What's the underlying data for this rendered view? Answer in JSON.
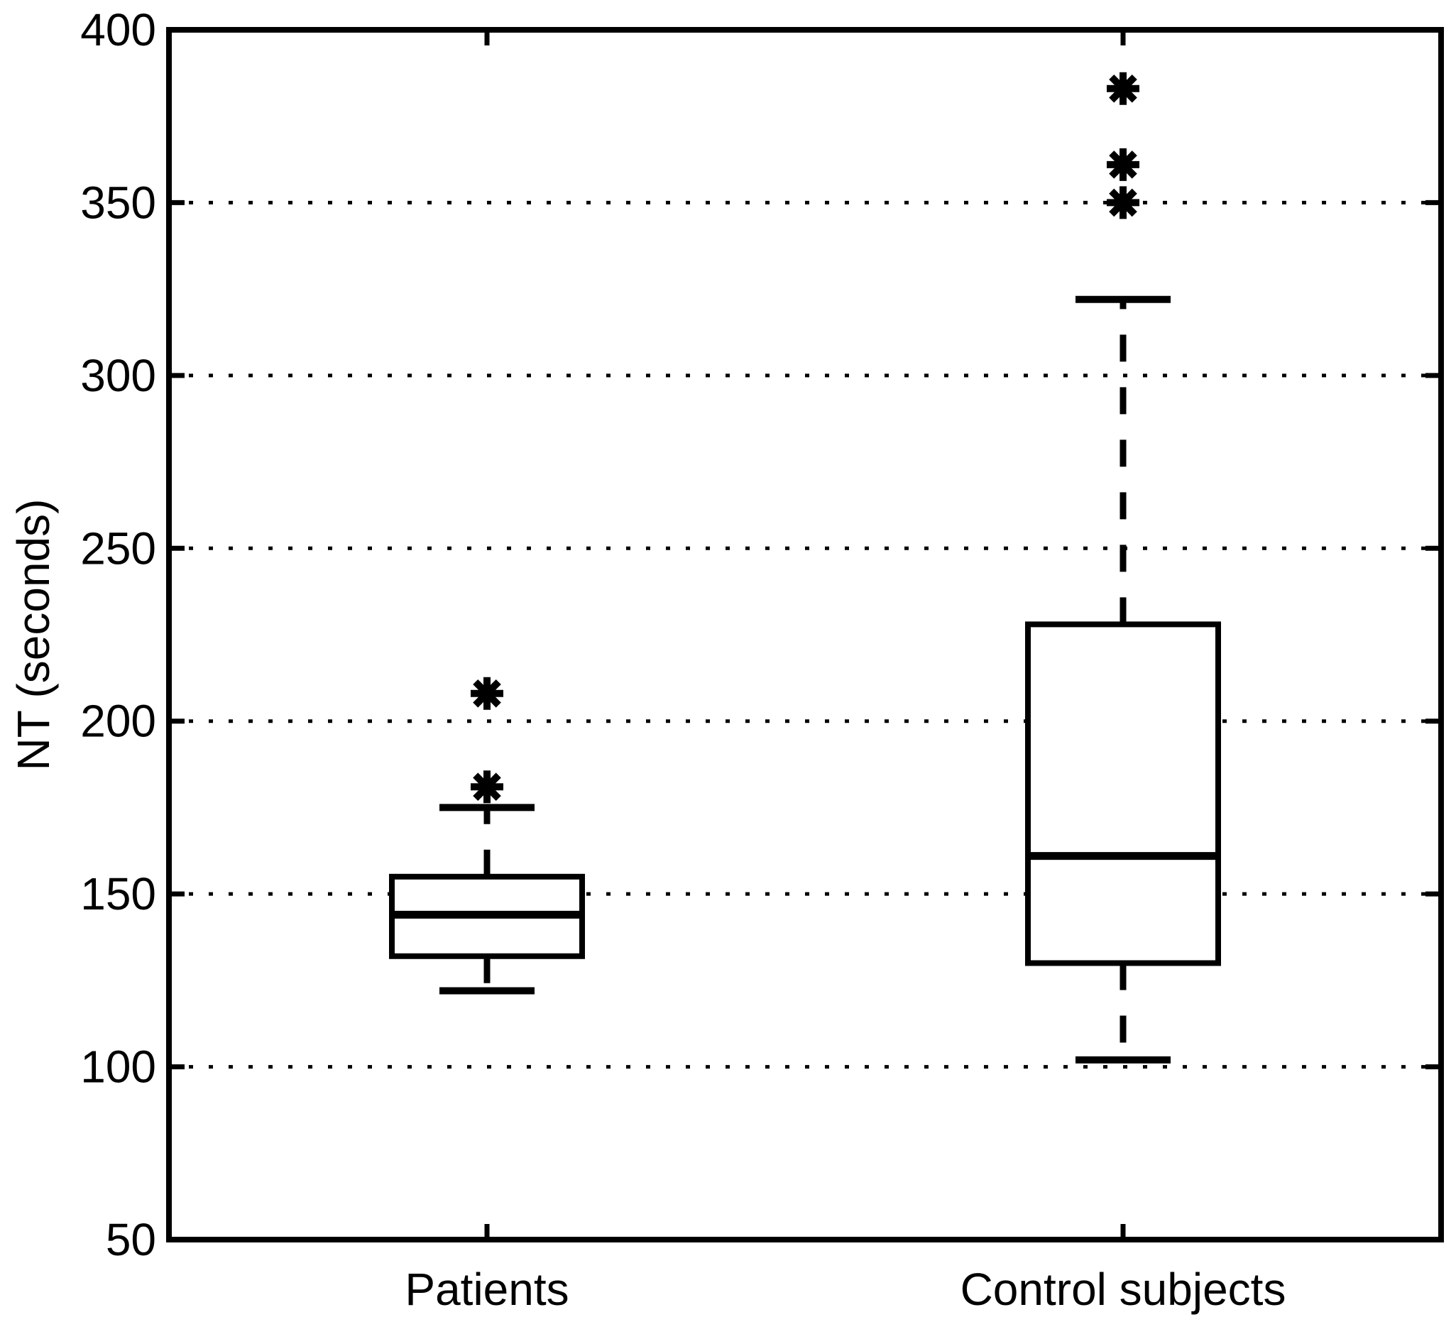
{
  "chart_data": {
    "type": "boxplot",
    "title": "",
    "ylabel": "NT (seconds)",
    "xlabel": "",
    "categories": [
      "Patients",
      "Control subjects"
    ],
    "y_axis": {
      "min": 50,
      "max": 400,
      "ticks": [
        400,
        350,
        300,
        250,
        200,
        150,
        100,
        50
      ],
      "grid_values": [
        350,
        300,
        250,
        200,
        150,
        100
      ],
      "grid": true,
      "grid_style": "dotted"
    },
    "series": [
      {
        "name": "Patients",
        "whisker_low": 122,
        "q1": 132,
        "median": 144,
        "q3": 155,
        "whisker_high": 175,
        "outliers": [
          181,
          208
        ]
      },
      {
        "name": "Control subjects",
        "whisker_low": 102,
        "q1": 130,
        "median": 161,
        "q3": 228,
        "whisker_high": 322,
        "outliers": [
          350,
          361,
          383
        ]
      }
    ],
    "marker": "asterisk",
    "legend": null,
    "colors": {
      "foreground": "#000000",
      "background": "#ffffff"
    }
  }
}
